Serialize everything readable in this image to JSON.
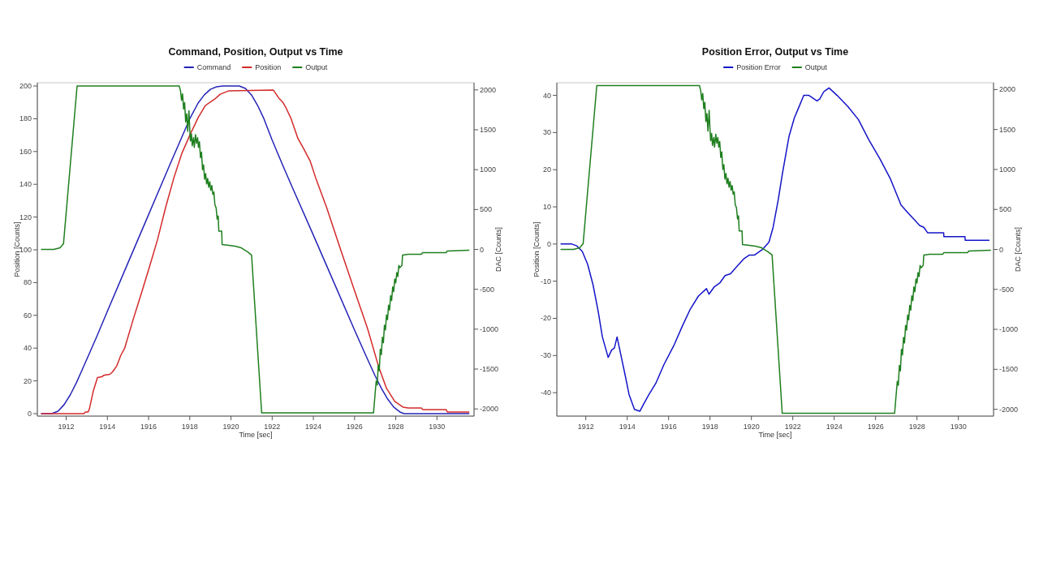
{
  "chart_data": [
    {
      "type": "line",
      "title": "Command, Position, Output vs Time",
      "xlabel": "Time [sec]",
      "ylabel": "Position [Counts]",
      "y2label": "DAC [Counts]",
      "xlim": [
        1910.6,
        1931.8
      ],
      "xticks": [
        1912,
        1914,
        1916,
        1918,
        1920,
        1922,
        1924,
        1926,
        1928,
        1930
      ],
      "ylim": [
        -1.5,
        202
      ],
      "yticks": [
        0,
        20,
        40,
        60,
        80,
        100,
        120,
        140,
        160,
        180,
        200
      ],
      "y2lim": [
        -2090,
        2090
      ],
      "y2ticks": [
        -2000,
        -1500,
        -1000,
        -500,
        0,
        500,
        1000,
        1500,
        2000
      ],
      "legend": "top",
      "series": [
        {
          "name": "Command",
          "color": "#2424b8",
          "x": [
            1910.8,
            1911.3,
            1911.6,
            1911.9,
            1912.2,
            1912.5,
            1912.8,
            1913.1,
            1913.5,
            1914,
            1915,
            1916,
            1917,
            1918,
            1918.4,
            1918.7,
            1919,
            1919.3,
            1919.6,
            1920.4,
            1920.7,
            1921,
            1921.3,
            1921.6,
            1922,
            1922.5,
            1923,
            1924,
            1925,
            1926,
            1926.6,
            1927,
            1927.3,
            1927.6,
            1927.9,
            1928.2,
            1928.4,
            1931.55
          ],
          "values": [
            0,
            0,
            1.5,
            5.5,
            11.5,
            19,
            27.5,
            36,
            47.5,
            62.5,
            92,
            121.5,
            151,
            180,
            189.5,
            194.5,
            198,
            199.5,
            200,
            200,
            198.5,
            194.5,
            188,
            180,
            167,
            152,
            137.5,
            109,
            80,
            51,
            34,
            23,
            15.5,
            9,
            4,
            1,
            0,
            0
          ]
        },
        {
          "name": "Position",
          "color": "#d42a2a",
          "x": [
            1910.8,
            1912.86,
            1912.93,
            1913.06,
            1913.12,
            1913.32,
            1913.52,
            1913.72,
            1913.85,
            1914.12,
            1914.25,
            1914.45,
            1914.65,
            1914.84,
            1915.24,
            1915.64,
            1916.04,
            1916.43,
            1916.83,
            1917.23,
            1917.62,
            1918.02,
            1918.42,
            1918.75,
            1919.21,
            1919.48,
            1919.88,
            1922.06,
            1922.33,
            1922.52,
            1922.66,
            1922.92,
            1923.25,
            1923.52,
            1923.85,
            1924.11,
            1924.64,
            1925.3,
            1925.96,
            1926.63,
            1927.16,
            1927.55,
            1927.95,
            1928.35,
            1928.61,
            1929.25,
            1929.3,
            1930.45,
            1930.5,
            1931.55
          ],
          "values": [
            0,
            0,
            1,
            1,
            2.5,
            14,
            22,
            22.5,
            23.5,
            24,
            25.5,
            29,
            35.5,
            40,
            57,
            73,
            89.5,
            106,
            126,
            144,
            159,
            170.5,
            181,
            188,
            192,
            195,
            197,
            197.5,
            192.5,
            190,
            187,
            180,
            168,
            162,
            154,
            144,
            126,
            101,
            76.5,
            52,
            29,
            15.5,
            7.5,
            4,
            3.5,
            3.5,
            2.5,
            2.5,
            1,
            1
          ]
        },
        {
          "name": "Output",
          "color": "#1f7f1f",
          "axis": "y2",
          "x": [
            1910.8,
            1911.4,
            1911.7,
            1911.87,
            1912.53,
            1917.49,
            1917.55,
            1917.6,
            1917.65,
            1917.7,
            1917.75,
            1917.8,
            1917.85,
            1917.9,
            1917.96,
            1918.0,
            1918.03,
            1918.08,
            1918.12,
            1918.18,
            1918.22,
            1918.28,
            1918.33,
            1918.38,
            1918.42,
            1918.47,
            1918.52,
            1918.57,
            1918.62,
            1918.67,
            1918.72,
            1918.77,
            1918.82,
            1918.87,
            1918.92,
            1918.97,
            1919.02,
            1919.07,
            1919.12,
            1919.17,
            1919.22,
            1919.28,
            1919.33,
            1919.38,
            1919.41,
            1919.55,
            1919.57,
            1919.9,
            1920.2,
            1920.5,
            1920.8,
            1921.0,
            1921.49,
            1926.92,
            1927.0,
            1927.05,
            1927.1,
            1927.15,
            1927.2,
            1927.25,
            1927.3,
            1927.35,
            1927.4,
            1927.45,
            1927.5,
            1927.55,
            1927.6,
            1927.65,
            1927.7,
            1927.75,
            1927.8,
            1927.85,
            1927.9,
            1927.95,
            1928.0,
            1928.05,
            1928.1,
            1928.15,
            1928.2,
            1928.3,
            1928.33,
            1928.6,
            1929.25,
            1929.3,
            1930.45,
            1930.5,
            1931.55
          ],
          "values": [
            0,
            0,
            20,
            70,
            2050,
            2050,
            1990,
            1870,
            1950,
            1760,
            1840,
            1600,
            1700,
            1480,
            1740,
            1500,
            1360,
            1450,
            1300,
            1400,
            1280,
            1440,
            1330,
            1400,
            1280,
            1350,
            1150,
            1220,
            1000,
            1060,
            880,
            950,
            820,
            890,
            780,
            850,
            740,
            800,
            690,
            720,
            560,
            520,
            380,
            420,
            230,
            230,
            60,
            50,
            40,
            20,
            -30,
            -70,
            -2050,
            -2050,
            -1800,
            -1650,
            -1700,
            -1450,
            -1520,
            -1250,
            -1320,
            -1100,
            -1170,
            -950,
            -1010,
            -820,
            -880,
            -700,
            -760,
            -580,
            -640,
            -470,
            -530,
            -370,
            -420,
            -290,
            -340,
            -200,
            -230,
            -200,
            -70,
            -60,
            -60,
            -40,
            -40,
            -20,
            -10
          ]
        }
      ]
    },
    {
      "type": "line",
      "title": "Position Error, Output vs Time",
      "xlabel": "Time [sec]",
      "ylabel": "Position [Counts]",
      "y2label": "DAC [Counts]",
      "xlim": [
        1910.6,
        1931.7
      ],
      "xticks": [
        1912,
        1914,
        1916,
        1918,
        1920,
        1922,
        1924,
        1926,
        1928,
        1930
      ],
      "ylim": [
        -46.3,
        43.4
      ],
      "yticks": [
        -40,
        -30,
        -20,
        -10,
        0,
        10,
        20,
        30,
        40
      ],
      "y2lim": [
        -2085,
        2085
      ],
      "y2ticks": [
        -2000,
        -1500,
        -1000,
        -500,
        0,
        500,
        1000,
        1500,
        2000
      ],
      "legend": "top",
      "series": [
        {
          "name": "Position Error",
          "color": "#1414c8",
          "x": [
            1910.8,
            1911.32,
            1911.57,
            1911.83,
            1912.09,
            1912.35,
            1912.61,
            1912.8,
            1913.08,
            1913.25,
            1913.38,
            1913.51,
            1913.7,
            1913.89,
            1914.09,
            1914.35,
            1914.61,
            1914.8,
            1915.05,
            1915.38,
            1915.77,
            1916.28,
            1916.67,
            1917.05,
            1917.44,
            1917.83,
            1917.95,
            1918.21,
            1918.47,
            1918.73,
            1918.99,
            1919.31,
            1919.63,
            1919.89,
            1920.14,
            1920.53,
            1920.85,
            1921.05,
            1921.3,
            1921.5,
            1921.82,
            1922.08,
            1922.27,
            1922.53,
            1922.78,
            1923.17,
            1923.3,
            1923.5,
            1923.75,
            1924.14,
            1924.66,
            1925.17,
            1925.68,
            1926.2,
            1926.72,
            1927.23,
            1927.55,
            1927.88,
            1928.13,
            1928.33,
            1928.52,
            1929.29,
            1929.3,
            1930.32,
            1930.33,
            1931.48
          ],
          "values": [
            0,
            0,
            -0.5,
            -2,
            -5.5,
            -11,
            -18.5,
            -25,
            -30.5,
            -28.5,
            -28,
            -25,
            -30,
            -35,
            -40.5,
            -44.5,
            -45,
            -43,
            -40.5,
            -37.5,
            -32.5,
            -27,
            -22,
            -17.5,
            -14,
            -12,
            -13.5,
            -11.5,
            -10.5,
            -8.5,
            -8,
            -6,
            -4,
            -3,
            -3,
            -1.5,
            0.5,
            4.5,
            12,
            19,
            29,
            34,
            36.5,
            40,
            40,
            38.5,
            39,
            41,
            42,
            40,
            37,
            33.5,
            28,
            23,
            17.5,
            10.5,
            8.5,
            6.5,
            5,
            4.5,
            3,
            3,
            2,
            2,
            1,
            1
          ]
        },
        {
          "name": "Output",
          "color": "#1f7f1f",
          "axis": "y2",
          "x": [
            1910.8,
            1911.4,
            1911.7,
            1911.87,
            1912.53,
            1917.49,
            1917.55,
            1917.6,
            1917.65,
            1917.7,
            1917.75,
            1917.8,
            1917.85,
            1917.9,
            1917.96,
            1918.0,
            1918.03,
            1918.08,
            1918.12,
            1918.18,
            1918.22,
            1918.28,
            1918.33,
            1918.38,
            1918.42,
            1918.47,
            1918.52,
            1918.57,
            1918.62,
            1918.67,
            1918.72,
            1918.77,
            1918.82,
            1918.87,
            1918.92,
            1918.97,
            1919.02,
            1919.07,
            1919.12,
            1919.17,
            1919.22,
            1919.28,
            1919.33,
            1919.38,
            1919.41,
            1919.55,
            1919.57,
            1919.9,
            1920.2,
            1920.5,
            1920.8,
            1921.0,
            1921.49,
            1926.92,
            1927.0,
            1927.05,
            1927.1,
            1927.15,
            1927.2,
            1927.25,
            1927.3,
            1927.35,
            1927.4,
            1927.45,
            1927.5,
            1927.55,
            1927.6,
            1927.65,
            1927.7,
            1927.75,
            1927.8,
            1927.85,
            1927.9,
            1927.95,
            1928.0,
            1928.05,
            1928.1,
            1928.15,
            1928.2,
            1928.3,
            1928.33,
            1928.6,
            1929.25,
            1929.3,
            1930.45,
            1930.5,
            1931.55
          ],
          "values": [
            0,
            0,
            20,
            70,
            2050,
            2050,
            1990,
            1870,
            1950,
            1760,
            1840,
            1600,
            1700,
            1480,
            1740,
            1500,
            1360,
            1450,
            1300,
            1400,
            1280,
            1440,
            1330,
            1400,
            1280,
            1350,
            1150,
            1220,
            1000,
            1060,
            880,
            950,
            820,
            890,
            780,
            850,
            740,
            800,
            690,
            720,
            560,
            520,
            380,
            420,
            230,
            230,
            60,
            50,
            40,
            20,
            -30,
            -70,
            -2050,
            -2050,
            -1800,
            -1650,
            -1700,
            -1450,
            -1520,
            -1250,
            -1320,
            -1100,
            -1170,
            -950,
            -1010,
            -820,
            -880,
            -700,
            -760,
            -580,
            -640,
            -470,
            -530,
            -370,
            -420,
            -290,
            -340,
            -200,
            -230,
            -200,
            -70,
            -60,
            -60,
            -40,
            -40,
            -20,
            -10
          ]
        }
      ]
    }
  ]
}
